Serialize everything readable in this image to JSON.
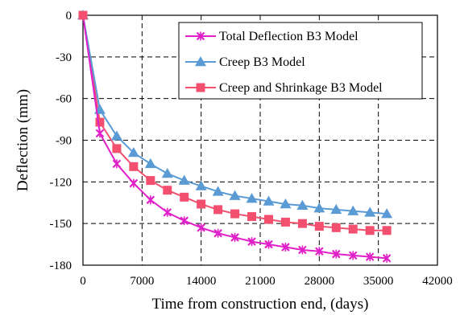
{
  "chart_data": {
    "type": "line",
    "xlabel": "Time from construction end, (days)",
    "ylabel": "Deflection (mm)",
    "xlim": [
      0,
      42000
    ],
    "ylim": [
      -180,
      0
    ],
    "x_ticks": [
      0,
      7000,
      14000,
      21000,
      28000,
      35000,
      42000
    ],
    "y_ticks": [
      0,
      -30,
      -60,
      -90,
      -120,
      -150,
      -180
    ],
    "x_tick_labels": [
      "0",
      "7000",
      "14000",
      "21000",
      "28000",
      "35000",
      "42000"
    ],
    "y_tick_labels": [
      "0",
      "-30",
      "-60",
      "-90",
      "-120",
      "-150",
      "-180"
    ],
    "grid": "dashed",
    "legend_position": "top-right",
    "x": [
      0,
      2000,
      4000,
      6000,
      8000,
      10000,
      12000,
      14000,
      16000,
      18000,
      20000,
      22000,
      24000,
      26000,
      28000,
      30000,
      32000,
      34000,
      36000
    ],
    "series": [
      {
        "name": "Total Deflection B3 Model",
        "color": "#e020c8",
        "marker": "x",
        "values": [
          0,
          -85,
          -107,
          -121,
          -133,
          -142,
          -148,
          -153,
          -157,
          -160,
          -163,
          -165,
          -167,
          -169,
          -170,
          -172,
          -173,
          -174,
          -175
        ]
      },
      {
        "name": "Creep B3 Model",
        "color": "#5b9bd5",
        "marker": "triangle",
        "values": [
          0,
          -68,
          -87,
          -99,
          -107,
          -114,
          -119,
          -123,
          -127,
          -130,
          -132,
          -134,
          -136,
          -137,
          -139,
          -140,
          -141,
          -142,
          -143
        ]
      },
      {
        "name": "Creep and Shrinkage B3 Model",
        "color": "#f2506e",
        "marker": "square",
        "values": [
          0,
          -77,
          -96,
          -109,
          -119,
          -126,
          -131,
          -136,
          -140,
          -143,
          -145,
          -147,
          -149,
          -150,
          -152,
          -153,
          -154,
          -155,
          -155
        ]
      }
    ]
  }
}
